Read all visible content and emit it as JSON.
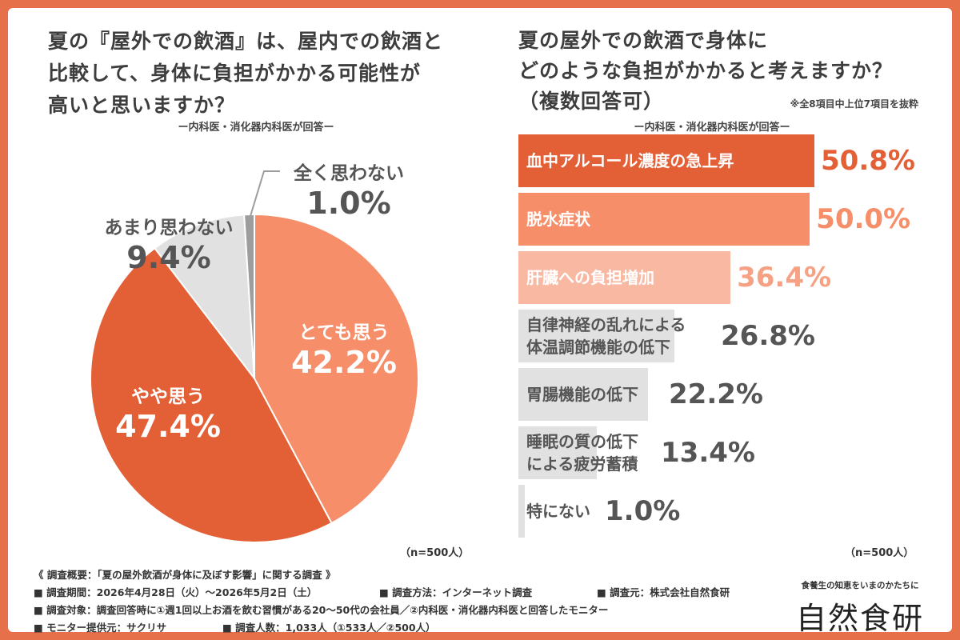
{
  "left": {
    "title": "夏の『屋外での飲酒』は、屋内での飲酒と\n比較して、身体に負担がかかる可能性が\n高いと思いますか？",
    "subtitle": "ー内科医・消化器内科医が回答ー",
    "n_note": "（n=500人）"
  },
  "right": {
    "title": "夏の屋外での飲酒で身体に\nどのような負担がかかると考えますか？\n（複数回答可）",
    "note": "※全8項目中上位7項目を抜粋",
    "subtitle": "ー内科医・消化器内科医が回答ー",
    "n_note": "（n=500人）"
  },
  "chart_data": [
    {
      "type": "pie",
      "title": "夏の『屋外での飲酒』は、屋内での飲酒と比較して、身体に負担がかかる可能性が高いと思いますか？",
      "subtitle": "ー内科医・消化器内科医が回答ー",
      "slices": [
        {
          "label": "とても思う",
          "value": 42.2,
          "display": "42.2%",
          "color": "#f58e69",
          "text_color": "#ffffff"
        },
        {
          "label": "やや思う",
          "value": 47.4,
          "display": "47.4%",
          "color": "#e35f36",
          "text_color": "#ffffff"
        },
        {
          "label": "あまり思わない",
          "value": 9.4,
          "display": "9.4%",
          "color": "#e1e1e1",
          "text_color": "#555555"
        },
        {
          "label": "全く思わない",
          "value": 1.0,
          "display": "1.0%",
          "color": "#9d9d9d",
          "text_color": "#555555"
        }
      ],
      "start": "12 o'clock, clockwise"
    },
    {
      "type": "bar",
      "orientation": "horizontal",
      "title": "夏の屋外での飲酒で身体にどのような負担がかかると考えますか？（複数回答可）",
      "subtitle": "ー内科医・消化器内科医が回答ー",
      "xlim": [
        0,
        55
      ],
      "bars": [
        {
          "label": "血中アルコール濃度の急上昇",
          "value": 50.8,
          "display": "50.8%",
          "color": "#e35f36",
          "label_color": "#ffffff",
          "value_color": "#e35f36"
        },
        {
          "label": "脱水症状",
          "value": 50.0,
          "display": "50.0%",
          "color": "#f58e69",
          "label_color": "#ffffff",
          "value_color": "#f58e69"
        },
        {
          "label": "肝臓への負担増加",
          "value": 36.4,
          "display": "36.4%",
          "color": "#f9b8a2",
          "label_color": "#ffffff",
          "value_color": "#f6a184"
        },
        {
          "label": "自律神経の乱れによる\n体温調節機能の低下",
          "value": 26.8,
          "display": "26.8%",
          "color": "#e1e1e1",
          "label_color": "#555555",
          "value_color": "#555555"
        },
        {
          "label": "胃腸機能の低下",
          "value": 22.2,
          "display": "22.2%",
          "color": "#e1e1e1",
          "label_color": "#555555",
          "value_color": "#555555"
        },
        {
          "label": "睡眠の質の低下\nによる疲労蓄積",
          "value": 13.4,
          "display": "13.4%",
          "color": "#e1e1e1",
          "label_color": "#555555",
          "value_color": "#555555"
        },
        {
          "label": "特にない",
          "value": 1.0,
          "display": "1.0%",
          "color": "#e1e1e1",
          "label_color": "#555555",
          "value_color": "#555555"
        }
      ]
    }
  ],
  "survey": {
    "title": "《 調査概要：「夏の屋外飲酒が身体に及ぼす影響」に関する調査 》",
    "lines": [
      [
        "■ 調査期間：2026年4月28日（火）～2026年5月2日（土）",
        "■ 調査方法：インターネット調査",
        "■ 調査元：株式会社自然食研"
      ],
      [
        "■ 調査対象：調査回答時に①週1回以上お酒を飲む習慣がある20～50代の会社員／②内科医・消化器内科医と回答したモニター"
      ],
      [
        "■ モニター提供元：サクリサ",
        "■ 調査人数：1,033人（①533人／②500人）"
      ]
    ]
  },
  "brand": {
    "tagline": "食養生の知恵をいまのかたちに",
    "logo": "自然食研"
  },
  "colors": {
    "frame": "#e6704a",
    "accent_dark": "#e35f36",
    "accent_mid": "#f58e69",
    "accent_light": "#f9b8a2",
    "gray_bar": "#e1e1e1",
    "gray_dark": "#9d9d9d"
  }
}
